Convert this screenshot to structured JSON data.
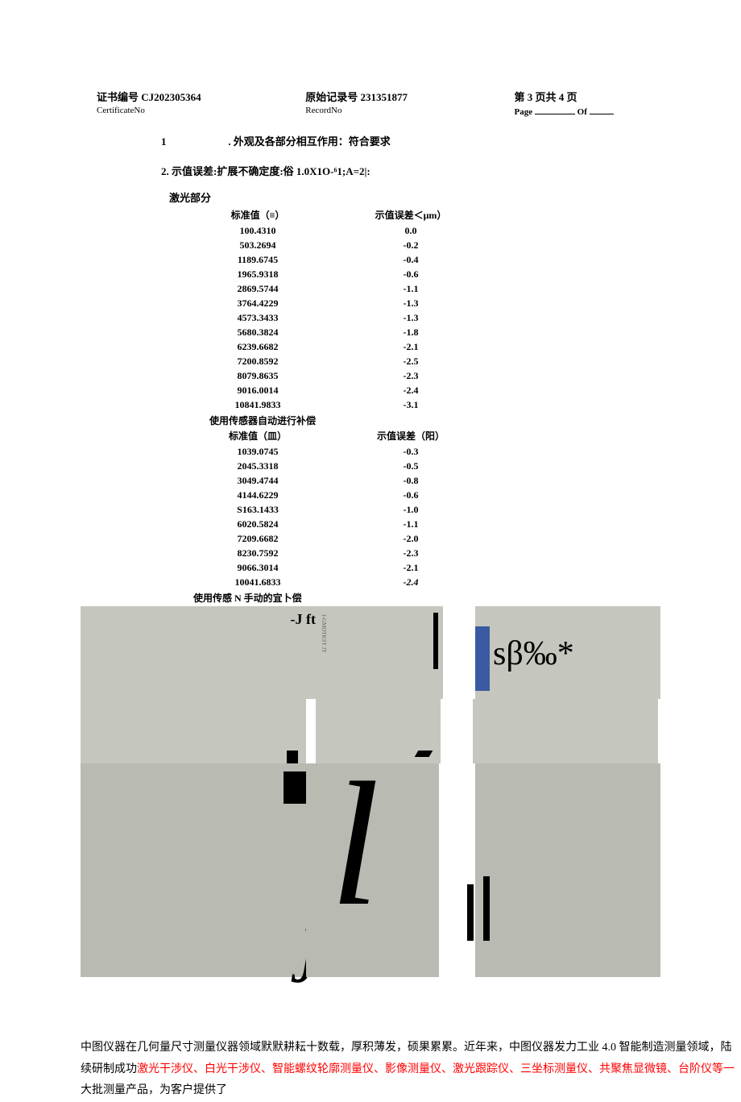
{
  "header": {
    "cert_label": "证书编号",
    "cert_no": "CJ202305364",
    "cert_sub": "CertificateNo",
    "record_label": "原始记录号",
    "record_no": "231351877",
    "record_sub": "RecordNo",
    "page_cn": "第 3 页共 4 页",
    "page_en_pre": "Page",
    "page_en_of": "Of"
  },
  "section1_num": "1",
  "section1": ". 外观及各部分相互作用：符合要求",
  "section2": "2. 示值误差:扩展不确定度:俗 1.0X1O-⁶1;A=2|:",
  "laser_title": "激光部分",
  "t1": {
    "h1": "标准值（≡）",
    "h2": "示值误差＜μm）",
    "rows": [
      {
        "std": "100.4310",
        "err": "0.0"
      },
      {
        "std": "503.2694",
        "err": "-0.2"
      },
      {
        "std": "1189.6745",
        "err": "-0.4"
      },
      {
        "std": "1965.9318",
        "err": "-0.6"
      },
      {
        "std": "2869.5744",
        "err": "-1.1"
      },
      {
        "std": "3764.4229",
        "err": "-1.3"
      },
      {
        "std": "4573.3433",
        "err": "-1.3"
      },
      {
        "std": "5680.3824",
        "err": "-1.8"
      },
      {
        "std": "6239.6682",
        "err": "-2.1"
      },
      {
        "std": "7200.8592",
        "err": "-2.5"
      },
      {
        "std": "8079.8635",
        "err": "-2.3"
      },
      {
        "std": "9016.0014",
        "err": "-2.4"
      },
      {
        "std": "10841.9833",
        "err": "-3.1"
      }
    ]
  },
  "note1": "使用传感器自动进行补偿",
  "t2": {
    "h1": "标准值（皿）",
    "h2": "示值误差（阳）",
    "rows": [
      {
        "std": "1039.0745",
        "err": "-0.3"
      },
      {
        "std": "2045.3318",
        "err": "-0.5"
      },
      {
        "std": "3049.4744",
        "err": "-0.8"
      },
      {
        "std": "4144.6229",
        "err": "-0.6"
      },
      {
        "std": "S163.1433",
        "err": "-1.0"
      },
      {
        "std": "6020.5824",
        "err": "-1.1"
      },
      {
        "std": "7209.6682",
        "err": "-2.0"
      },
      {
        "std": "8230.7592",
        "err": "-2.3"
      },
      {
        "std": "9066.3014",
        "err": "-2.1"
      },
      {
        "std": "10041.6833",
        "err": "-2.4",
        "italic_err": true
      }
    ]
  },
  "note2": "使用传感 N 手动的宜卜偿",
  "graphic": {
    "jft": "-J ft",
    "vtext": "J-GMOTKST JT",
    "sbo": "sβ‰*"
  },
  "footer": {
    "p1_a": "中图仪器在几何量尺寸测量仪器领域默默耕耘十数载，厚积薄发，硕果累累。近年来，中图仪器发力工业 4.0 智能制造测量领域，陆续研制成功",
    "p1_red": "激光干涉仪、白光干涉仪、智能螺纹轮廓测量仪、影像测量仪、激光跟踪仪、三坐标测量仪、共聚焦显微镜、台阶仪等一",
    "p1_b": "大批测量产品，为客户提供了"
  }
}
